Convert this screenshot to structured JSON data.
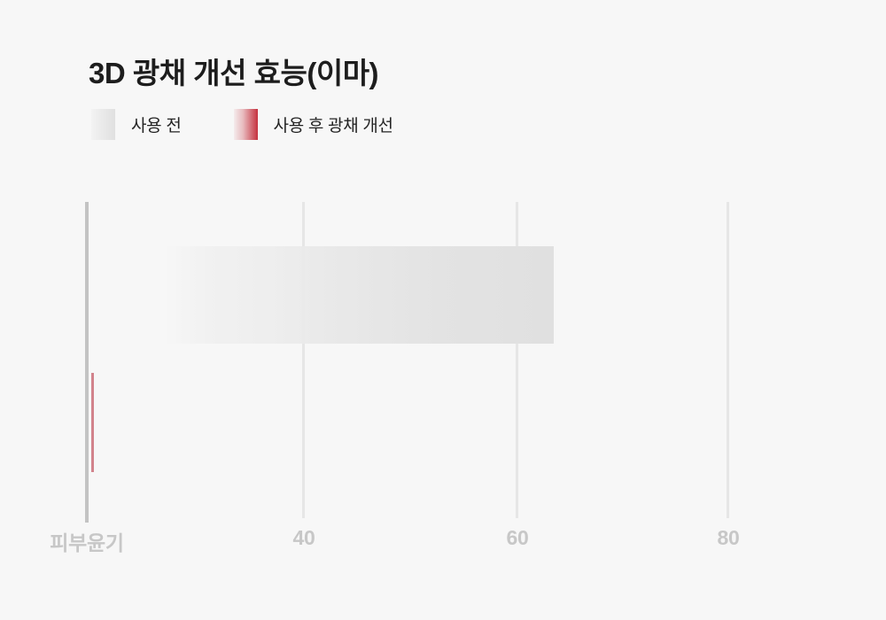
{
  "header": {
    "title": "3D 광채 개선 효능(이마)"
  },
  "legend": {
    "items": [
      {
        "label": "사용 전",
        "swatch": "gray-gradient"
      },
      {
        "label": "사용 후 광채 개선",
        "swatch": "red-gradient"
      }
    ]
  },
  "axis": {
    "category_label": "피부윤기",
    "xticks": [
      "40",
      "60",
      "80"
    ]
  },
  "colors": {
    "background": "#f7f7f7",
    "title_text": "#1d1d1d",
    "legend_text": "#242424",
    "axis_line": "#c3c3c3",
    "gridline": "#e6e6e6",
    "tick_label": "#c7c7c7",
    "bar_before": "#e0e0e0",
    "bar_after_accent": "#c5313e",
    "bar_after_rendered": "#d2838c"
  },
  "chart_data": {
    "type": "bar",
    "orientation": "horizontal",
    "title": "3D 광채 개선 효능(이마)",
    "categories": [
      "피부윤기"
    ],
    "series": [
      {
        "name": "사용 전",
        "value": 64,
        "color": "#e0e0e0",
        "fill": "fade-in gradient from transparent at left to solid gray at right"
      },
      {
        "name": "사용 후 광채 개선",
        "value": 20.8,
        "color": "#c5313e",
        "fill": "rendered as a thin 3px red line at the axis (bar collapsed / animation start)"
      }
    ],
    "xlabel": "",
    "ylabel": "",
    "x_axis": {
      "start": 20,
      "ticks": [
        40,
        60,
        80
      ],
      "xlim": [
        20,
        91
      ]
    },
    "grid": true,
    "legend_position": "top-left",
    "category_axis_label": "피부윤기"
  }
}
